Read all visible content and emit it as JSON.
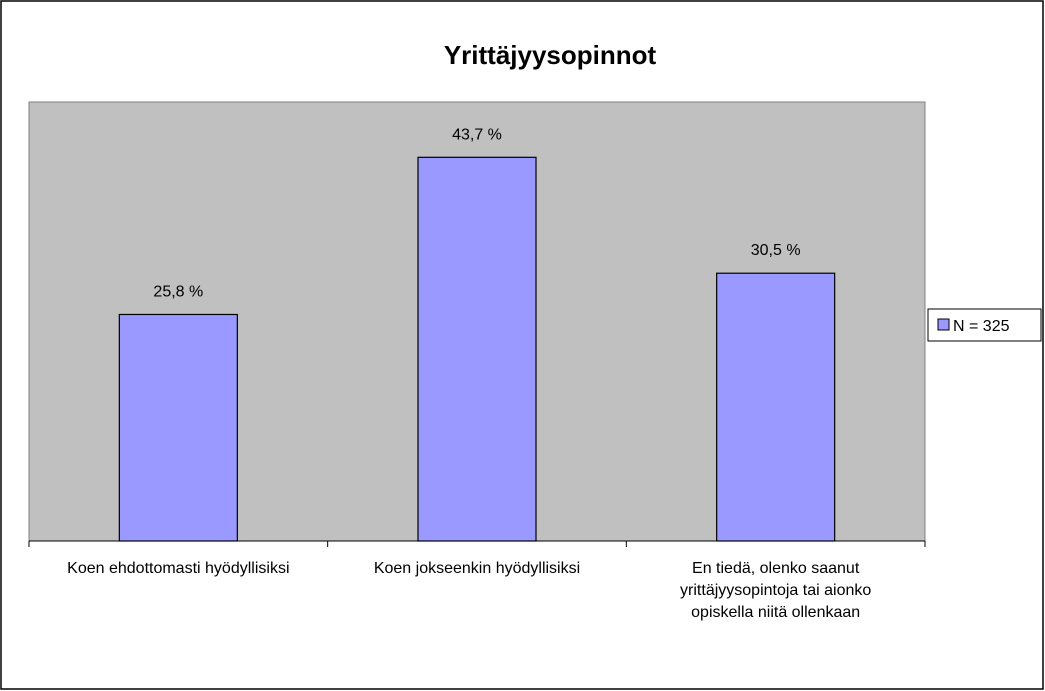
{
  "chart_data": {
    "type": "bar",
    "title": "Yrittäjyysopinnot",
    "categories": [
      "Koen ehdottomasti hyödyllisiksi",
      "Koen jokseenkin hyödyllisiksi",
      "En tiedä, olenko saanut yrittäjyysopintoja tai aionko opiskella niitä ollenkaan"
    ],
    "series": [
      {
        "name": "N = 325",
        "color": "#9999ff",
        "values": [
          25.8,
          43.7,
          30.5
        ],
        "value_labels": [
          "25,8 %",
          "43,7 %",
          "30,5 %"
        ]
      }
    ],
    "legend": "right"
  }
}
